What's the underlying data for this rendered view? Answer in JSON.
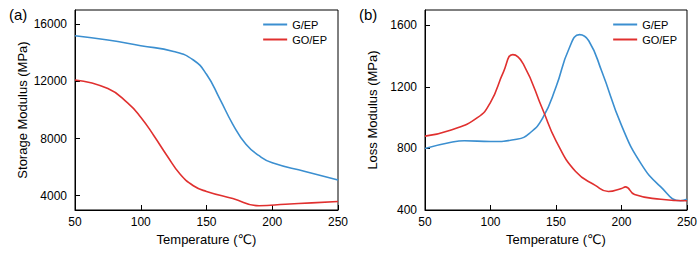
{
  "chart_data": [
    {
      "type": "line",
      "title": "(a)",
      "x_label": "Temperature (℃)",
      "y_label": "Storage Modulus (MPa)",
      "xlim": [
        50,
        250
      ],
      "xticks": [
        50,
        100,
        150,
        200,
        250
      ],
      "ylim": [
        3000,
        17000
      ],
      "yticks": [
        4000,
        8000,
        12000,
        16000
      ],
      "grid": false,
      "legend": "upper right",
      "series": [
        {
          "name": "G/EP",
          "color": "#3b8fd0",
          "x": [
            50,
            75,
            100,
            125,
            140,
            150,
            160,
            170,
            180,
            190,
            200,
            225,
            250
          ],
          "values": [
            15200,
            14900,
            14500,
            14100,
            13500,
            12500,
            10800,
            9000,
            7600,
            6800,
            6300,
            5700,
            5100
          ]
        },
        {
          "name": "GO/EP",
          "color": "#e0302f",
          "x": [
            50,
            75,
            90,
            100,
            110,
            120,
            130,
            140,
            150,
            170,
            190,
            210,
            230,
            250
          ],
          "values": [
            12100,
            11500,
            10500,
            9500,
            8200,
            6800,
            5500,
            4700,
            4300,
            3800,
            3300,
            3400,
            3500,
            3600
          ]
        }
      ]
    },
    {
      "type": "line",
      "title": "(b)",
      "x_label": "Temperature (℃)",
      "y_label": "Loss Modulus (MPa)",
      "xlim": [
        50,
        250
      ],
      "xticks": [
        50,
        100,
        150,
        200,
        250
      ],
      "ylim": [
        400,
        1700
      ],
      "yticks": [
        400,
        800,
        1200,
        1600
      ],
      "grid": false,
      "legend": "upper right",
      "series": [
        {
          "name": "G/EP",
          "color": "#3b8fd0",
          "x": [
            50,
            70,
            80,
            100,
            120,
            130,
            140,
            150,
            160,
            168,
            175,
            185,
            200,
            215,
            230,
            245,
            250
          ],
          "values": [
            800,
            840,
            850,
            845,
            860,
            900,
            1000,
            1200,
            1450,
            1540,
            1500,
            1300,
            950,
            700,
            550,
            460,
            470
          ]
        },
        {
          "name": "GO/EP",
          "color": "#e0302f",
          "x": [
            50,
            70,
            90,
            100,
            110,
            117,
            125,
            140,
            150,
            165,
            180,
            190,
            200,
            203,
            210,
            230,
            250
          ],
          "values": [
            880,
            920,
            1000,
            1100,
            1300,
            1410,
            1350,
            1050,
            850,
            650,
            560,
            520,
            540,
            550,
            500,
            470,
            460
          ]
        }
      ]
    }
  ]
}
